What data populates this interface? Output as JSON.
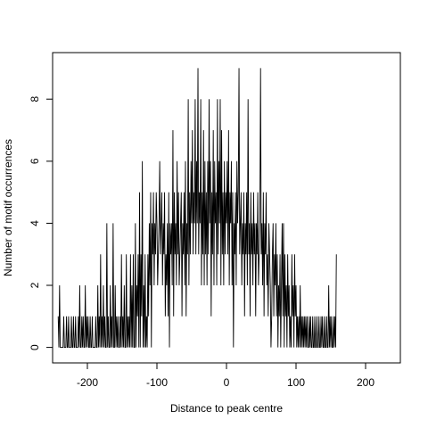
{
  "chart_data": {
    "type": "line",
    "xlabel": "Distance to peak centre",
    "ylabel": "Number of motif occurrences",
    "xlim": [
      -250,
      250
    ],
    "ylim": [
      -0.5,
      9.5
    ],
    "x_ticks": [
      -200,
      -100,
      0,
      100,
      200
    ],
    "y_ticks": [
      0,
      2,
      4,
      6,
      8
    ],
    "grid": false,
    "legend": "none",
    "line_color": "#000000",
    "series": [
      {
        "x_start": -242,
        "x_step": 1,
        "values": [
          1,
          0,
          2,
          0,
          0,
          0,
          0,
          0,
          1,
          0,
          0,
          0,
          1,
          0,
          0,
          1,
          0,
          0,
          0,
          1,
          0,
          0,
          1,
          0,
          0,
          1,
          0,
          0,
          0,
          1,
          0,
          2,
          0,
          0,
          1,
          0,
          1,
          0,
          0,
          2,
          0,
          1,
          0,
          1,
          0,
          0,
          1,
          0,
          0,
          1,
          0,
          0,
          0,
          0,
          1,
          0,
          0,
          2,
          0,
          1,
          0,
          3,
          0,
          1,
          0,
          2,
          0,
          1,
          0,
          0,
          4,
          0,
          1,
          0,
          0,
          2,
          0,
          1,
          0,
          4,
          0,
          0,
          2,
          0,
          1,
          0,
          1,
          0,
          0,
          1,
          0,
          3,
          0,
          1,
          0,
          2,
          0,
          0,
          3,
          0,
          1,
          0,
          1,
          0,
          3,
          0,
          2,
          0,
          3,
          0,
          0,
          4,
          0,
          2,
          1,
          3,
          0,
          5,
          0,
          3,
          1,
          6,
          0,
          2,
          0,
          3,
          0,
          1,
          0,
          3,
          1,
          4,
          2,
          5,
          0,
          4,
          3,
          5,
          2,
          4,
          3,
          5,
          4,
          2,
          3,
          4,
          6,
          3,
          4,
          5,
          2,
          4,
          3,
          5,
          1,
          3,
          2,
          4,
          1,
          5,
          0,
          4,
          3,
          4,
          2,
          7,
          1,
          5,
          3,
          4,
          2,
          6,
          3,
          5,
          2,
          3,
          4,
          5,
          1,
          4,
          3,
          5,
          2,
          6,
          1,
          4,
          3,
          8,
          2,
          5,
          3,
          6,
          4,
          7,
          3,
          5,
          4,
          8,
          3,
          6,
          4,
          9,
          3,
          5,
          4,
          8,
          2,
          5,
          3,
          7,
          2,
          6,
          3,
          5,
          2,
          6,
          3,
          8,
          4,
          6,
          1,
          5,
          3,
          7,
          2,
          6,
          4,
          5,
          2,
          8,
          3,
          6,
          4,
          8,
          2,
          7,
          3,
          5,
          2,
          6,
          3,
          5,
          4,
          6,
          3,
          7,
          2,
          5,
          4,
          6,
          2,
          5,
          0,
          4,
          3,
          5,
          2,
          6,
          4,
          5,
          9,
          3,
          4,
          5,
          2,
          4,
          3,
          5,
          1,
          4,
          3,
          5,
          2,
          8,
          3,
          4,
          1,
          5,
          3,
          4,
          2,
          5,
          3,
          4,
          1,
          4,
          3,
          5,
          2,
          3,
          4,
          9,
          3,
          4,
          2,
          5,
          1,
          4,
          3,
          5,
          2,
          3,
          1,
          4,
          3,
          2,
          0,
          1,
          3,
          4,
          1,
          3,
          2,
          4,
          1,
          3,
          0,
          2,
          1,
          3,
          0,
          2,
          4,
          1,
          4,
          0,
          3,
          1,
          2,
          0,
          3,
          1,
          2,
          0,
          1,
          0,
          3,
          1,
          2,
          0,
          3,
          1,
          2,
          0,
          1,
          0,
          1,
          0,
          2,
          0,
          1,
          0,
          1,
          0,
          1,
          0,
          1,
          0,
          1,
          0,
          0,
          1,
          0,
          1,
          0,
          0,
          1,
          0,
          0,
          1,
          0,
          0,
          1,
          0,
          0,
          1,
          0,
          0,
          1,
          0,
          1,
          0,
          0,
          1,
          0,
          0,
          1,
          0,
          0,
          2,
          0,
          1,
          0,
          1,
          0,
          0,
          1,
          0,
          1,
          0,
          3
        ]
      }
    ]
  }
}
